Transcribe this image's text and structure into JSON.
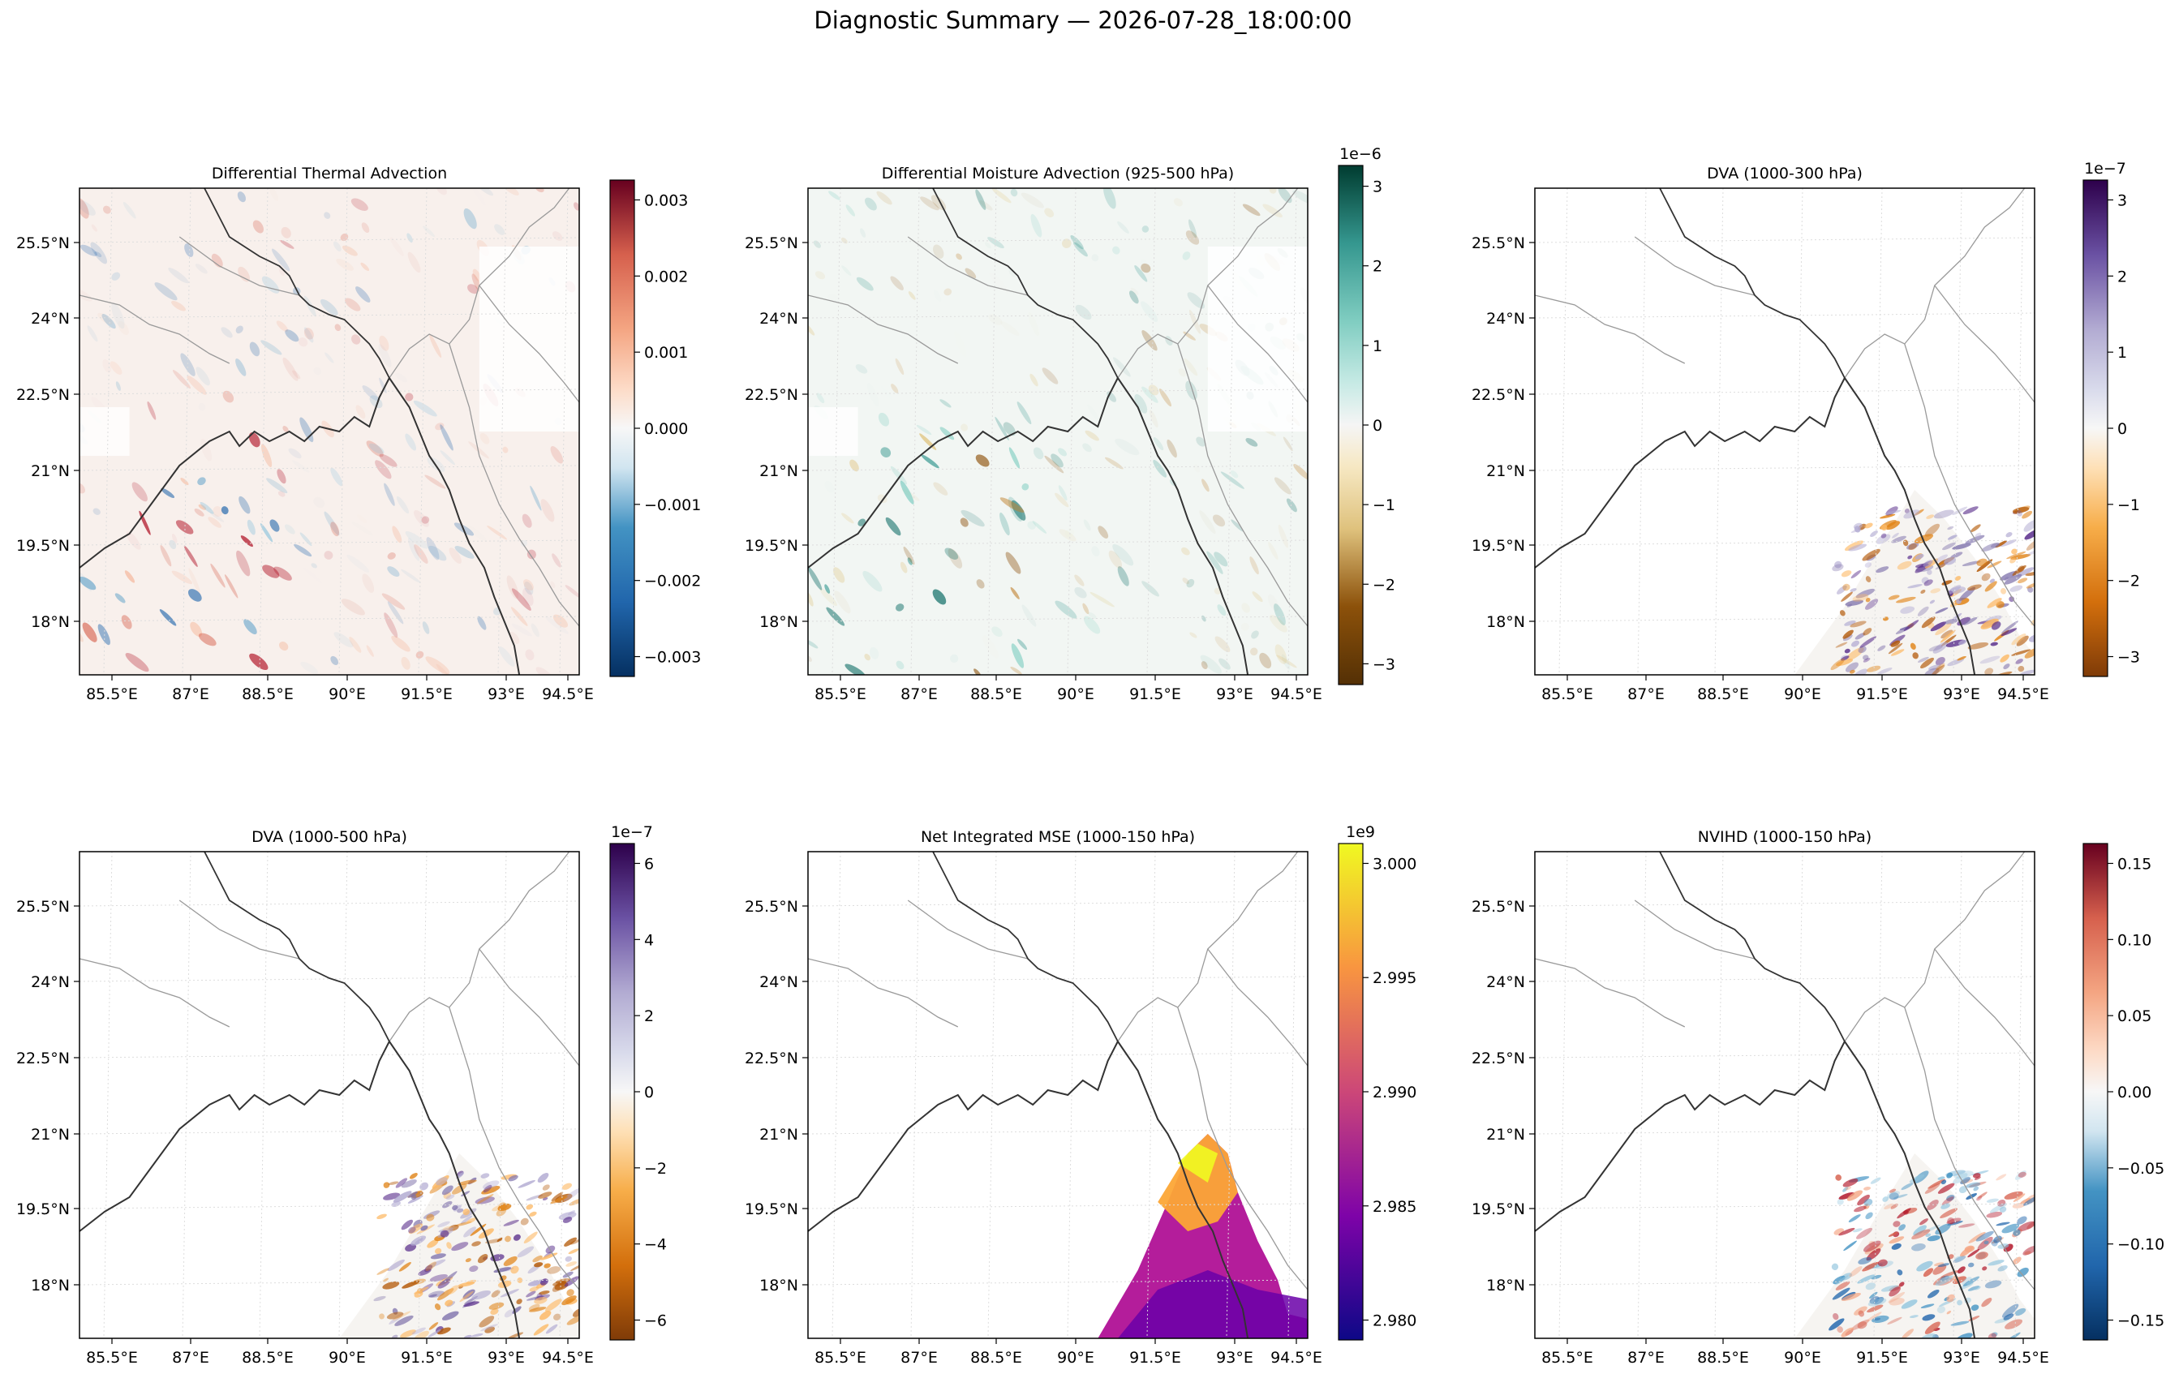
{
  "title": "Diagnostic Summary — 2026-07-28_18:00:00",
  "x_ticks": [
    "85.5°E",
    "87°E",
    "88.5°E",
    "90°E",
    "91.5°E",
    "93°E",
    "94.5°E"
  ],
  "y_ticks": [
    "25.5°N",
    "24°N",
    "22.5°N",
    "21°N",
    "19.5°N",
    "18°N"
  ],
  "colors": {
    "coast": "#333333",
    "borders": "#9a9a9a",
    "grid": "#dddddd"
  },
  "panels": [
    {
      "title": "Differential Thermal Advection",
      "cmap": "RdBu_r",
      "offset": "",
      "cbar_ticks": [
        "0.003",
        "0.002",
        "0.001",
        "0.000",
        "−0.001",
        "−0.002",
        "−0.003"
      ],
      "data_coverage": "full domain"
    },
    {
      "title": "Differential Moisture Advection (925-500 hPa)",
      "cmap": "BrBG",
      "offset": "1e−6",
      "cbar_ticks": [
        "3",
        "2",
        "1",
        "0",
        "−1",
        "−2",
        "−3"
      ],
      "data_coverage": "full domain"
    },
    {
      "title": "DVA (1000-300 hPa)",
      "cmap": "PuOr_r",
      "offset": "1e−7",
      "cbar_ticks": [
        "3",
        "2",
        "1",
        "0",
        "−1",
        "−2",
        "−3"
      ],
      "data_coverage": "southeast corner"
    },
    {
      "title": "DVA (1000-500 hPa)",
      "cmap": "PuOr_r",
      "offset": "1e−7",
      "cbar_ticks": [
        "6",
        "4",
        "2",
        "0",
        "−2",
        "−4",
        "−6"
      ],
      "data_coverage": "southeast corner"
    },
    {
      "title": "Net Integrated MSE (1000-150 hPa)",
      "cmap": "plasma",
      "offset": "1e9",
      "cbar_ticks": [
        "3.000",
        "2.995",
        "2.990",
        "2.985",
        "2.980"
      ],
      "data_coverage": "southeast corner"
    },
    {
      "title": "NVIHD (1000-150 hPa)",
      "cmap": "RdBu_r",
      "offset": "",
      "cbar_ticks": [
        "0.15",
        "0.10",
        "0.05",
        "0.00",
        "−0.05",
        "−0.10",
        "−0.15"
      ],
      "data_coverage": "southeast corner"
    }
  ]
}
